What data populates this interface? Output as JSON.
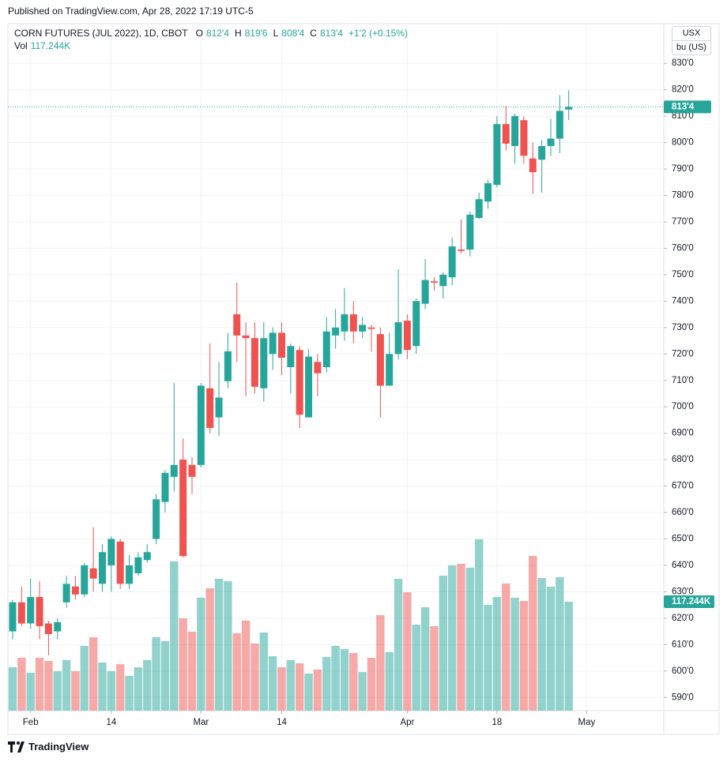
{
  "header": "Published on TradingView.com, Apr 28, 2022 17:19 UTC-5",
  "footer": "TradingView",
  "chart_data": {
    "type": "candlestick",
    "title": "CORN FUTURES (JUL 2022), 1D, CBOT",
    "legend": {
      "o_key": "O",
      "open": "812'4",
      "h_key": "H",
      "high": "819'6",
      "l_key": "L",
      "low": "808'4",
      "c_key": "C",
      "close": "813'4",
      "change": "+1'2 (+0.15%)",
      "vol_key": "Vol",
      "volume": "117.244K"
    },
    "units": [
      "USX",
      "bu (US)"
    ],
    "categories": [
      null,
      null,
      "Feb",
      null,
      null,
      null,
      null,
      null,
      null,
      null,
      null,
      "14",
      null,
      null,
      null,
      null,
      null,
      null,
      null,
      null,
      null,
      "Mar",
      null,
      null,
      null,
      null,
      null,
      null,
      null,
      null,
      "14",
      null,
      null,
      null,
      null,
      null,
      null,
      null,
      null,
      null,
      null,
      null,
      null,
      null,
      "Apr",
      null,
      null,
      null,
      null,
      null,
      null,
      null,
      null,
      null,
      "18",
      null,
      null,
      null,
      null,
      null,
      null,
      null,
      null,
      null,
      "May"
    ],
    "open": [
      615,
      626,
      618,
      628,
      618,
      615,
      626,
      632,
      629,
      638.9,
      633,
      640,
      649,
      633,
      637,
      642,
      650,
      664,
      673.5,
      680,
      678,
      678,
      707,
      696,
      709.7,
      735,
      727,
      726,
      707,
      720,
      728,
      715,
      721.5,
      696,
      717,
      715,
      727,
      728.5,
      735,
      728.5,
      730,
      727.5,
      708,
      720,
      732.6,
      723,
      739,
      747.5,
      745.7,
      749,
      759.5,
      759.5,
      771.5,
      777.7,
      784,
      807,
      798.7,
      808.5,
      794,
      793.5,
      798.7,
      801.5,
      812.5,
      null,
      null
    ],
    "high": [
      627,
      632,
      635,
      634,
      619,
      620,
      636,
      636,
      641,
      654.5,
      648,
      651,
      650,
      644,
      645,
      648,
      667,
      676,
      709,
      688,
      681,
      709,
      724,
      717,
      728,
      747,
      732,
      732,
      732,
      730,
      732,
      724,
      723,
      722,
      720,
      734,
      737,
      745,
      740,
      734,
      731,
      730,
      728,
      752,
      735,
      741,
      756,
      749,
      751,
      764,
      771,
      774,
      781,
      786,
      810,
      814,
      811,
      810,
      800,
      801,
      809,
      818,
      819.75,
      null,
      null
    ],
    "low": [
      612,
      617,
      616,
      612,
      606,
      612,
      624,
      627,
      628,
      630,
      630,
      630,
      631,
      631,
      636,
      641,
      648,
      660,
      668,
      643,
      667,
      677,
      690,
      689,
      707,
      717,
      704,
      705,
      702,
      714,
      712,
      705,
      692,
      696,
      704,
      713,
      722,
      725,
      724,
      726,
      721,
      696,
      708,
      718,
      718,
      720,
      737,
      744,
      741,
      746,
      758,
      757,
      771,
      775,
      783,
      797,
      792,
      792,
      780.5,
      781,
      795,
      796,
      808.5,
      null,
      null
    ],
    "close": [
      626,
      618,
      628,
      617,
      614,
      618.5,
      633,
      629,
      640,
      635,
      645,
      650,
      633,
      640,
      643,
      645,
      665,
      675,
      678,
      643.5,
      673.5,
      708,
      692,
      703.5,
      721,
      727,
      726,
      707.6,
      726,
      728,
      718.6,
      723,
      697,
      719,
      712.7,
      728.5,
      730,
      735,
      728.5,
      731,
      729.5,
      708,
      720,
      732,
      721.5,
      740,
      748,
      747,
      750,
      760.7,
      759,
      772.7,
      778.6,
      784.6,
      807,
      799.6,
      810,
      795,
      788.8,
      798.7,
      801.5,
      812,
      813.5,
      null,
      null
    ],
    "volume": [
      46700,
      57000,
      40800,
      57000,
      53500,
      42500,
      54400,
      42500,
      69700,
      79000,
      51800,
      42500,
      50000,
      37400,
      46700,
      54400,
      79000,
      74800,
      160600,
      99400,
      85000,
      121500,
      131700,
      141900,
      139300,
      83300,
      96900,
      72200,
      84100,
      58600,
      46700,
      54400,
      51000,
      39900,
      44200,
      57800,
      69700,
      66300,
      62000,
      41600,
      56900,
      102800,
      62900,
      141900,
      127400,
      92600,
      111300,
      90900,
      145300,
      156300,
      158000,
      153800,
      184400,
      113800,
      122300,
      136800,
      121500,
      118000,
      166500,
      142700,
      133400,
      143600,
      117244,
      null,
      null
    ],
    "up_color": "#26a69a",
    "down_color": "#ef5350",
    "ylim": [
      585,
      845
    ],
    "yticks": [
      {
        "value": 590,
        "label": "590'0"
      },
      {
        "value": 600,
        "label": "600'0"
      },
      {
        "value": 610,
        "label": "610'0"
      },
      {
        "value": 620,
        "label": "620'0"
      },
      {
        "value": 630,
        "label": "630'0"
      },
      {
        "value": 640,
        "label": "640'0"
      },
      {
        "value": 650,
        "label": "650'0"
      },
      {
        "value": 660,
        "label": "660'0"
      },
      {
        "value": 670,
        "label": "670'0"
      },
      {
        "value": 680,
        "label": "680'0"
      },
      {
        "value": 690,
        "label": "690'0"
      },
      {
        "value": 700,
        "label": "700'0"
      },
      {
        "value": 710,
        "label": "710'0"
      },
      {
        "value": 720,
        "label": "720'0"
      },
      {
        "value": 730,
        "label": "730'0"
      },
      {
        "value": 740,
        "label": "740'0"
      },
      {
        "value": 750,
        "label": "750'0"
      },
      {
        "value": 760,
        "label": "760'0"
      },
      {
        "value": 770,
        "label": "770'0"
      },
      {
        "value": 780,
        "label": "780'0"
      },
      {
        "value": 790,
        "label": "790'0"
      },
      {
        "value": 800,
        "label": "800'0"
      },
      {
        "value": 810,
        "label": "810'0"
      },
      {
        "value": 820,
        "label": "820'0"
      },
      {
        "value": 830,
        "label": "830'0"
      }
    ],
    "volume_ylim": [
      0,
      255000
    ],
    "last_price": {
      "value": 813.5,
      "label": "813'4"
    },
    "last_volume": {
      "value": 117244,
      "label": "117.244K"
    },
    "grid": true
  }
}
